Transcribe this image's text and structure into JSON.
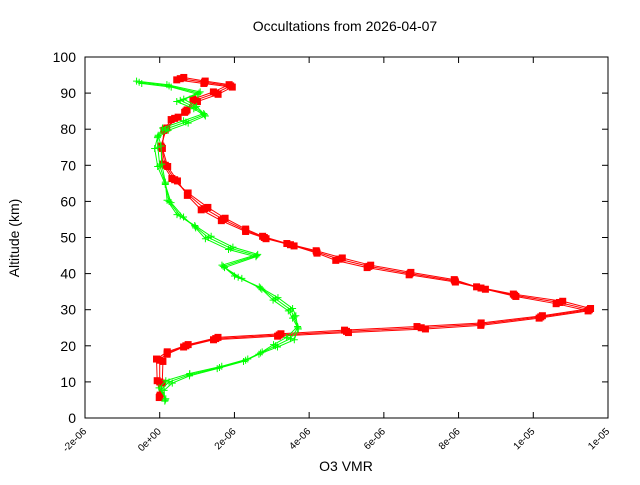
{
  "chart_data": {
    "type": "line",
    "title": "Occultations from 2026-04-07",
    "xlabel": "O3 VMR",
    "ylabel": "Altitude (km)",
    "xlim": [
      -2e-06,
      1.2e-05
    ],
    "ylim": [
      0,
      100
    ],
    "xticks": [
      -2e-06,
      0,
      2e-06,
      4e-06,
      6e-06,
      8e-06,
      1e-05,
      1.2e-05
    ],
    "xtick_labels": [
      "-2e-06",
      "0e+00",
      "2e-06",
      "4e-06",
      "6e-06",
      "8e-06",
      "1e-05",
      "1e-05"
    ],
    "yticks": [
      0,
      10,
      20,
      30,
      40,
      50,
      60,
      70,
      80,
      90,
      100
    ],
    "ytick_labels": [
      "0",
      "10",
      "20",
      "30",
      "40",
      "50",
      "60",
      "70",
      "80",
      "90",
      "100"
    ],
    "grid": false,
    "series": [
      {
        "color": "#ff0000",
        "marker": "filled-square",
        "x": [
          0,
          0,
          0,
          2e-07,
          7e-07,
          1.5e-06,
          3.2e-06,
          5e-06,
          7e-06,
          8.6e-06,
          1.02e-05,
          1.15e-05,
          1.07e-05,
          9.5e-06,
          8.6e-06,
          7.9e-06,
          6.7e-06,
          5.6e-06,
          4.8e-06,
          4.2e-06,
          3.5e-06,
          2.8e-06,
          2.3e-06,
          1.7e-06,
          1.2e-06,
          7.5e-07,
          4e-07,
          1.5e-07,
          5e-08,
          1.5e-07,
          4e-07,
          7e-07,
          9.5e-07,
          1.5e-06,
          1.9e-06,
          1.2e-06,
          5.5e-07
        ],
        "y": [
          6,
          10,
          16,
          18,
          20,
          22,
          23,
          24,
          25,
          26,
          28,
          30,
          32,
          34,
          36,
          38,
          40,
          42,
          44,
          46,
          48,
          50,
          52,
          55,
          58,
          62,
          66,
          70,
          75,
          80,
          83,
          85,
          88,
          90,
          92,
          93,
          94
        ]
      },
      {
        "color": "#00ff00",
        "marker": "plus",
        "x": [
          1.5e-07,
          5e-08,
          2.5e-07,
          8e-07,
          1.6e-06,
          2.3e-06,
          2.7e-06,
          3.1e-06,
          3.5e-06,
          3.7e-06,
          3.6e-06,
          3.5e-06,
          3.1e-06,
          2.7e-06,
          2.1e-06,
          1.7e-06,
          2.6e-06,
          1.9e-06,
          1.3e-06,
          9.5e-07,
          5.5e-07,
          2.5e-07,
          1.5e-07,
          0,
          -5e-08,
          -5e-08,
          1.5e-07,
          7e-07,
          1.2e-06,
          9.5e-07,
          5.5e-07,
          1.05e-06,
          2.5e-07,
          -5.5e-07
        ],
        "y": [
          5,
          8,
          10,
          12,
          14,
          16,
          18,
          20,
          22,
          25,
          28,
          30,
          33,
          36,
          39,
          42,
          45,
          47,
          50,
          53,
          56,
          60,
          65,
          70,
          75,
          78,
          80,
          82,
          84,
          86,
          88,
          90,
          92,
          93
        ]
      }
    ]
  }
}
